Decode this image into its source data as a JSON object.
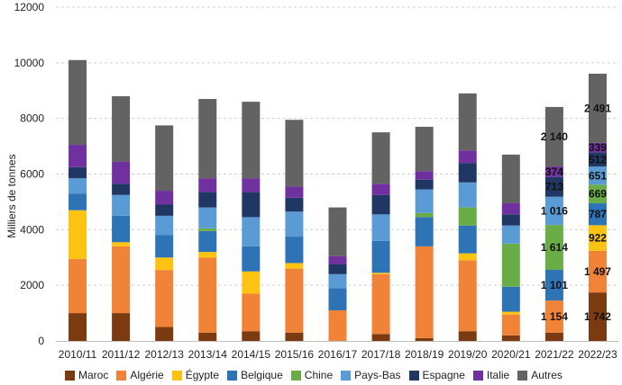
{
  "chart_data": {
    "type": "bar",
    "stacked": true,
    "ylabel": "Milliers de tonnes",
    "ylim": [
      0,
      12000
    ],
    "yticks": [
      0,
      2000,
      4000,
      6000,
      8000,
      10000,
      12000
    ],
    "ytick_labels": [
      "0",
      "2000",
      "4000",
      "6000",
      "8000",
      "10000",
      "12000"
    ],
    "grid": "horizontal dashed",
    "legend_position": "bottom",
    "categories": [
      "2010/11",
      "2011/12",
      "2012/13",
      "2013/14",
      "2014/15",
      "2015/16",
      "2016/17",
      "2017/18",
      "2018/19",
      "2019/20",
      "2020/21",
      "2021/22",
      "2022/23"
    ],
    "series": [
      {
        "name": "Maroc",
        "color": "#7b3a10",
        "values": [
          1000,
          1000,
          500,
          300,
          350,
          300,
          0,
          250,
          100,
          350,
          200,
          300,
          1742
        ]
      },
      {
        "name": "Algérie",
        "color": "#f08337",
        "values": [
          1950,
          2400,
          2050,
          2700,
          1350,
          2300,
          1100,
          2150,
          3300,
          2550,
          750,
          1154,
          1497
        ]
      },
      {
        "name": "Égypte",
        "color": "#fcc312",
        "values": [
          1750,
          150,
          450,
          200,
          800,
          200,
          0,
          50,
          0,
          250,
          100,
          0,
          922
        ]
      },
      {
        "name": "Belgique",
        "color": "#2f73b7",
        "values": [
          600,
          950,
          800,
          750,
          900,
          950,
          800,
          1150,
          1050,
          1000,
          900,
          1101,
          787
        ]
      },
      {
        "name": "Chine",
        "color": "#6aac45",
        "values": [
          0,
          0,
          0,
          100,
          0,
          0,
          0,
          0,
          150,
          650,
          1550,
          1614,
          669
        ]
      },
      {
        "name": "Pays-Bas",
        "color": "#5b9bd5",
        "values": [
          550,
          750,
          700,
          750,
          1050,
          900,
          500,
          950,
          850,
          900,
          650,
          1016,
          651
        ]
      },
      {
        "name": "Espagne",
        "color": "#203764",
        "values": [
          400,
          400,
          400,
          550,
          900,
          500,
          350,
          700,
          350,
          700,
          400,
          713,
          512
        ]
      },
      {
        "name": "Italie",
        "color": "#7030a0",
        "values": [
          800,
          800,
          500,
          500,
          500,
          400,
          300,
          400,
          300,
          450,
          400,
          374,
          339
        ]
      },
      {
        "name": "Autres",
        "color": "#636363",
        "values": [
          3050,
          2350,
          2350,
          2850,
          2750,
          2400,
          1750,
          1850,
          1600,
          2050,
          1750,
          2140,
          2491
        ]
      }
    ],
    "data_labels": [
      {
        "category": "2021/22",
        "series": "Algérie",
        "text": "1 154"
      },
      {
        "category": "2021/22",
        "series": "Belgique",
        "text": "1 101"
      },
      {
        "category": "2021/22",
        "series": "Chine",
        "text": "1 614"
      },
      {
        "category": "2021/22",
        "series": "Pays-Bas",
        "text": "1 016"
      },
      {
        "category": "2021/22",
        "series": "Espagne",
        "text": "713"
      },
      {
        "category": "2021/22",
        "series": "Italie",
        "text": "374"
      },
      {
        "category": "2021/22",
        "series": "Autres",
        "text": "2 140"
      },
      {
        "category": "2022/23",
        "series": "Maroc",
        "text": "1 742"
      },
      {
        "category": "2022/23",
        "series": "Algérie",
        "text": "1 497"
      },
      {
        "category": "2022/23",
        "series": "Égypte",
        "text": "922"
      },
      {
        "category": "2022/23",
        "series": "Belgique",
        "text": "787"
      },
      {
        "category": "2022/23",
        "series": "Chine",
        "text": "669"
      },
      {
        "category": "2022/23",
        "series": "Pays-Bas",
        "text": "651"
      },
      {
        "category": "2022/23",
        "series": "Espagne",
        "text": "512"
      },
      {
        "category": "2022/23",
        "series": "Italie",
        "text": "339"
      },
      {
        "category": "2022/23",
        "series": "Autres",
        "text": "2 491"
      }
    ]
  }
}
